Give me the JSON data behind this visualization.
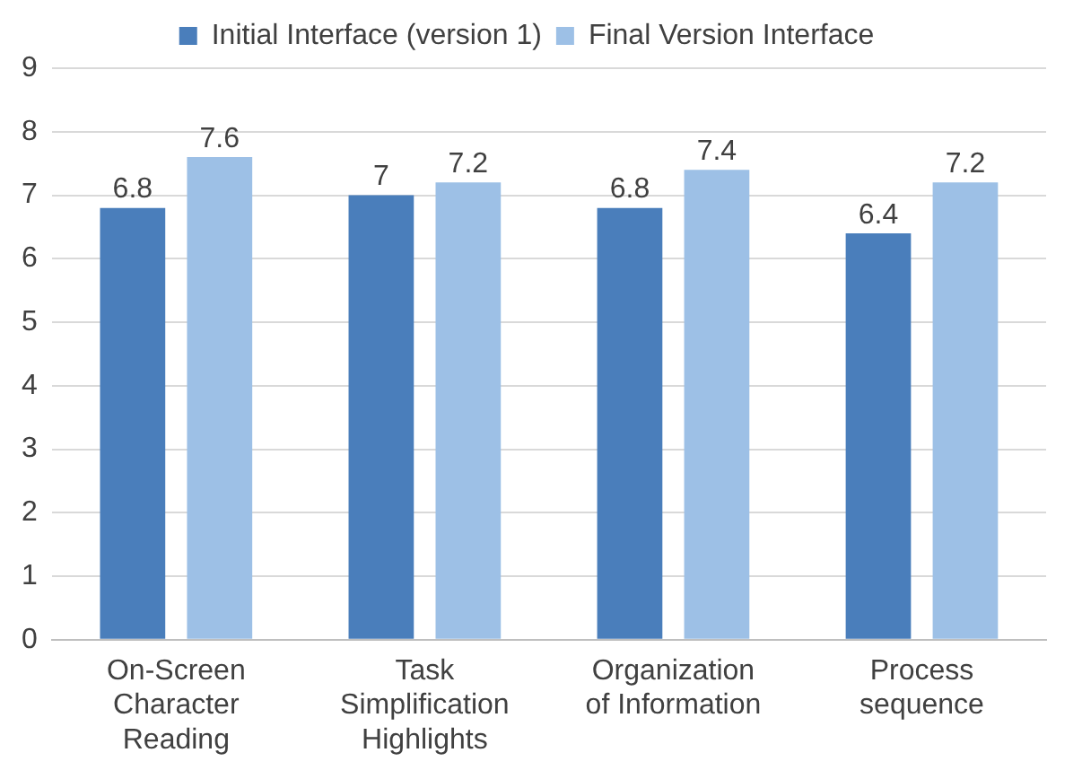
{
  "chart_data": {
    "type": "bar",
    "categories": [
      "On-Screen Character Reading",
      "Task Simplification Highlights",
      "Organization of Information",
      "Process sequence"
    ],
    "series": [
      {
        "name": "Initial Interface (version 1)",
        "color": "#4a7ebb",
        "values": [
          6.8,
          7,
          6.8,
          6.4
        ]
      },
      {
        "name": "Final Version Interface",
        "color": "#9dc0e6",
        "values": [
          7.6,
          7.2,
          7.4,
          7.2
        ]
      }
    ],
    "ylim": [
      0,
      9
    ],
    "yticks": [
      0,
      1,
      2,
      3,
      4,
      5,
      6,
      7,
      8,
      9
    ],
    "grid": "y",
    "legend": "top",
    "data_labels": true
  }
}
